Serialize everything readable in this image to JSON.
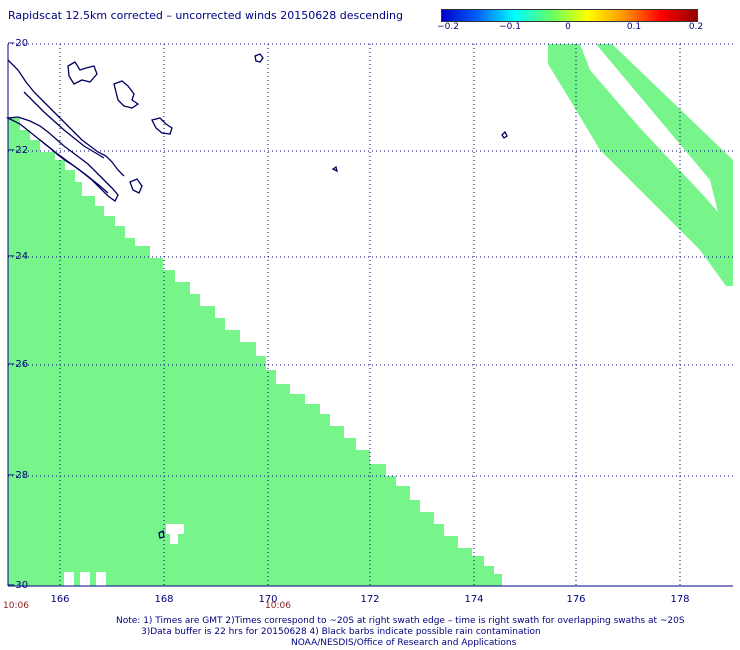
{
  "title": "Rapidscat 12.5km corrected – uncorrected winds 20150628 descending",
  "colorbar": {
    "ticks": [
      "−0.2",
      "−0.1",
      "0",
      "0.1",
      "0.2"
    ],
    "colors": [
      "#0000c8",
      "#0064ff",
      "#00ffff",
      "#64ff64",
      "#ffff00",
      "#ff9600",
      "#ff0000",
      "#960000"
    ]
  },
  "lat_labels": [
    "−20",
    "−22",
    "−24",
    "−26",
    "−28",
    "−30"
  ],
  "lon_labels": [
    "166",
    "168",
    "170",
    "172",
    "174",
    "176",
    "178"
  ],
  "time_labels": [
    "10:06",
    "10:06"
  ],
  "notes": [
    "Note: 1) Times are GMT 2)Times correspond to ~20S at right swath edge – time is right swath for overlapping swaths at ~20S",
    "3)Data buffer is 22 hrs for 20150628 4) Black barbs indicate possible rain contamination",
    "NOAA/NESDIS/Office of Research and Applications"
  ],
  "colors": {
    "swath": "#77f58a",
    "grid": "#000080",
    "coast": "#000060",
    "time": "#8b2020"
  }
}
